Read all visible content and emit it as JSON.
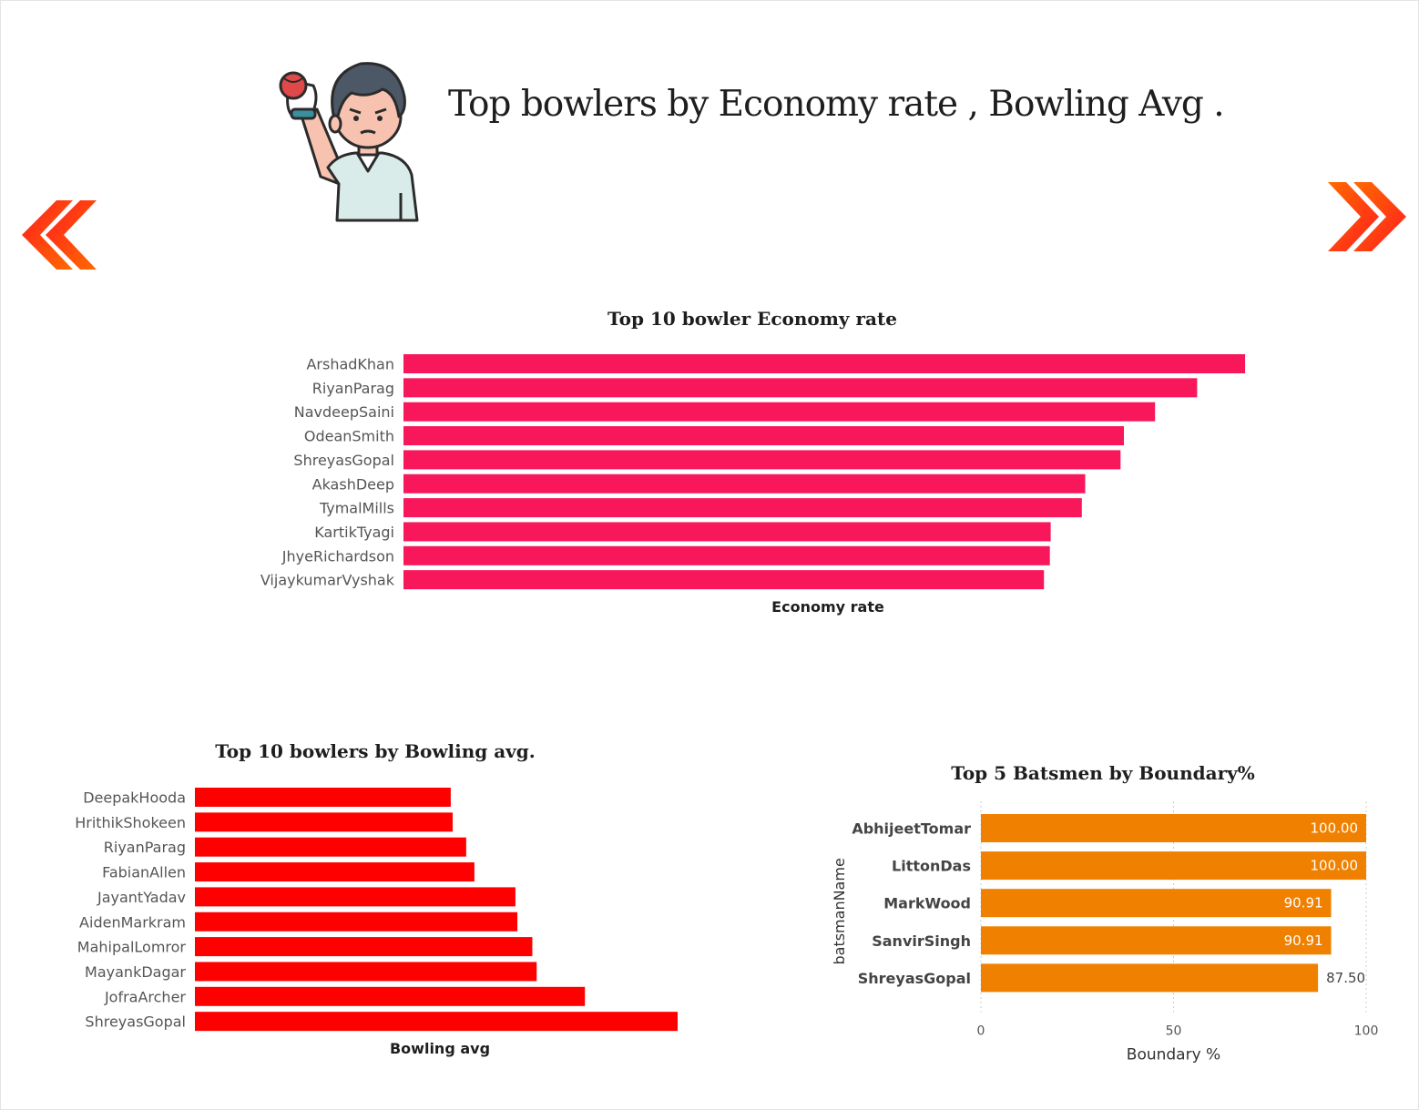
{
  "page": {
    "title": "Top bowlers by Economy rate , Bowling Avg ."
  },
  "icons": {
    "mascot": "cricket-bowler-illustration",
    "prev": "double-chevron-left-icon",
    "next": "double-chevron-right-icon"
  },
  "colors": {
    "economy_bar": "#f7175a",
    "bowling_bar": "#ff0000",
    "boundary_bar": "#f08100",
    "nav_arrow_start": "#ff1e1e",
    "nav_arrow_end": "#ff6a00"
  },
  "chart_data": [
    {
      "type": "bar",
      "orientation": "horizontal",
      "title": "Top 10 bowler Economy rate",
      "xlabel": "Economy rate",
      "ylabel": "",
      "categories": [
        "ArshadKhan",
        "RiyanParag",
        "NavdeepSaini",
        "OdeanSmith",
        "ShreyasGopal",
        "AkashDeep",
        "TymalMills",
        "KartikTyagi",
        "JhyeRichardson",
        "VijaykumarVyshak"
      ],
      "values": [
        10.0,
        9.43,
        8.93,
        8.56,
        8.52,
        8.1,
        8.06,
        7.69,
        7.68,
        7.61
      ],
      "xlim": [
        0,
        10.8
      ],
      "x_axis_visible": false,
      "grid": false
    },
    {
      "type": "bar",
      "orientation": "horizontal",
      "title": "Top 10 bowlers by Bowling avg.",
      "xlabel": "Bowling avg",
      "ylabel": "",
      "categories": [
        "DeepakHooda",
        "HrithikShokeen",
        "RiyanParag",
        "FabianAllen",
        "JayantYadav",
        "AidenMarkram",
        "MahipalLomror",
        "MayankDagar",
        "JofraArcher",
        "ShreyasGopal"
      ],
      "values": [
        53.0,
        53.4,
        56.2,
        57.9,
        66.4,
        66.8,
        69.9,
        70.8,
        80.8,
        100.0
      ],
      "xlim": [
        0,
        100
      ],
      "x_axis_visible": false,
      "grid": false
    },
    {
      "type": "bar",
      "orientation": "horizontal",
      "title": "Top 5 Batsmen by Boundary%",
      "xlabel": "Boundary %",
      "ylabel": "batsmanName",
      "categories": [
        "AbhijeetTomar",
        "LittonDas",
        "MarkWood",
        "SanvirSingh",
        "ShreyasGopal"
      ],
      "values": [
        100.0,
        100.0,
        90.91,
        90.91,
        87.5
      ],
      "value_labels": [
        "100.00",
        "100.00",
        "90.91",
        "90.91",
        "87.50"
      ],
      "xlim": [
        0,
        100
      ],
      "xticks": [
        "0",
        "50",
        "100"
      ],
      "grid": true
    }
  ]
}
